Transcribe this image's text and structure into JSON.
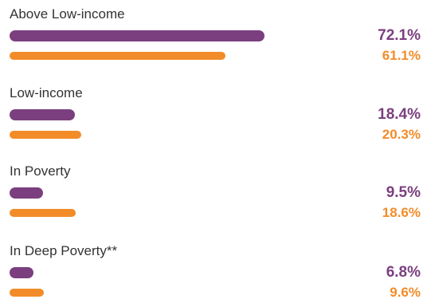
{
  "chart_data": {
    "type": "bar",
    "orientation": "horizontal",
    "categories": [
      "Above Low-income",
      "Low-income",
      "In Poverty",
      "In Deep Poverty**"
    ],
    "series": [
      {
        "color": "#7b3f7f",
        "values": [
          72.1,
          18.4,
          9.5,
          6.8
        ],
        "labels": [
          "72.1%",
          "18.4%",
          "9.5%",
          "6.8%"
        ]
      },
      {
        "color": "#f28c28",
        "values": [
          61.1,
          20.3,
          18.6,
          9.6
        ],
        "labels": [
          "61.1%",
          "20.3%",
          "18.6%",
          "9.6%"
        ]
      }
    ],
    "xlim": [
      0,
      72.1
    ],
    "grid": false,
    "legend": "none"
  }
}
